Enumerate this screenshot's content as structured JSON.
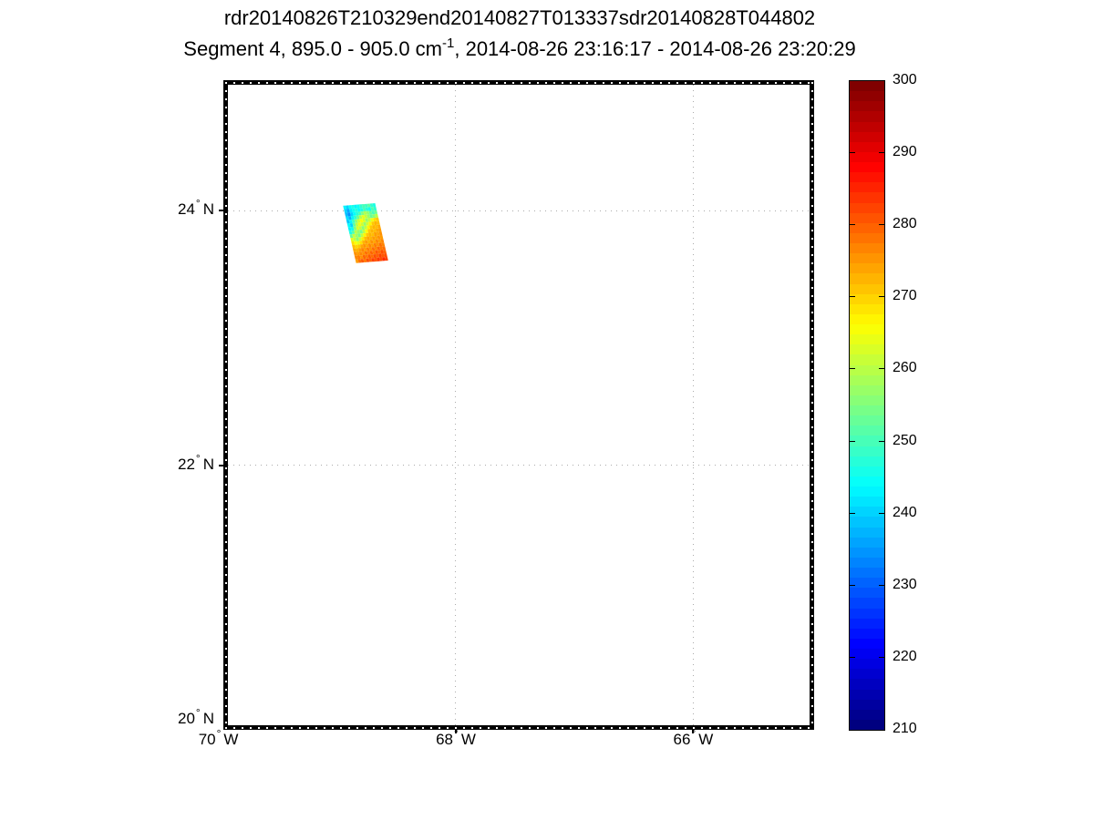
{
  "title": {
    "line1": "rdr20140826T210329end20140827T013337sdr20140828T044802",
    "line2_pre": "Segment 4, 895.0 - 905.0 cm",
    "line2_sup": "-1",
    "line2_post": ", 2014-08-26 23:16:17 - 2014-08-26 23:20:29"
  },
  "colors": {
    "background": "#ffffff",
    "frame": "#000000",
    "gridline": "#ababab"
  },
  "chart_data": {
    "type": "heatmap",
    "title_line1": "rdr20140826T210329end20140827T013337sdr20140828T044802",
    "title_line2": "Segment 4, 895.0 - 905.0 cm-1, 2014-08-26 23:16:17 - 2014-08-26 23:20:29",
    "colormap": "jet",
    "map": {
      "degree_symbol": "°",
      "lon_min": -69.92,
      "lon_max": -65.02,
      "lat_min": 19.96,
      "lat_max": 24.99,
      "grid": true,
      "lat_gridlines": [
        24,
        22
      ],
      "lon_gridlines": [
        -68,
        -66
      ],
      "lat_ticks": [
        {
          "value": 24,
          "label": "24",
          "dir": "N"
        },
        {
          "value": 22,
          "label": "22",
          "dir": "N"
        },
        {
          "value": 20,
          "label": "20",
          "dir": "N"
        }
      ],
      "lon_ticks": [
        {
          "value": -70,
          "label": "70",
          "dir": "W"
        },
        {
          "value": -68,
          "label": "68",
          "dir": "W"
        },
        {
          "value": -66,
          "label": "66",
          "dir": "W"
        }
      ]
    },
    "colorbar": {
      "min": 210,
      "max": 300,
      "ticks": [
        300,
        290,
        280,
        270,
        260,
        250,
        240,
        230,
        220,
        210
      ],
      "levels": 64,
      "position": "right"
    },
    "swath": {
      "corners_lonlat": {
        "tl": [
          -68.95,
          24.04
        ],
        "tr": [
          -68.68,
          24.06
        ],
        "br": [
          -68.56,
          23.63
        ],
        "bl": [
          -68.84,
          23.59
        ]
      },
      "cols": 12,
      "rows": 16,
      "values": [
        [
          243,
          240,
          244,
          246,
          243,
          245,
          248,
          250,
          249,
          252,
          248,
          246
        ],
        [
          240,
          236,
          242,
          245,
          247,
          244,
          246,
          250,
          247,
          245,
          251,
          248
        ],
        [
          238,
          234,
          240,
          244,
          247,
          250,
          255,
          259,
          257,
          253,
          250,
          253
        ],
        [
          241,
          237,
          243,
          248,
          253,
          260,
          264,
          261,
          257,
          253,
          256,
          260
        ],
        [
          239,
          243,
          249,
          256,
          262,
          266,
          263,
          257,
          261,
          265,
          269,
          271
        ],
        [
          244,
          240,
          252,
          260,
          265,
          262,
          257,
          262,
          267,
          271,
          273,
          272
        ],
        [
          243,
          245,
          255,
          263,
          261,
          256,
          261,
          267,
          271,
          273,
          272,
          274
        ],
        [
          246,
          251,
          260,
          257,
          254,
          260,
          266,
          271,
          273,
          272,
          274,
          275
        ],
        [
          253,
          261,
          258,
          254,
          261,
          267,
          271,
          273,
          272,
          275,
          274,
          276
        ],
        [
          264,
          261,
          256,
          262,
          268,
          272,
          274,
          273,
          275,
          274,
          276,
          275
        ],
        [
          269,
          266,
          264,
          269,
          273,
          275,
          273,
          276,
          274,
          277,
          275,
          277
        ],
        [
          272,
          270,
          271,
          274,
          276,
          274,
          277,
          275,
          278,
          276,
          279,
          277
        ],
        [
          274,
          273,
          275,
          277,
          275,
          278,
          276,
          279,
          277,
          280,
          278,
          279
        ],
        [
          276,
          275,
          277,
          276,
          279,
          277,
          280,
          278,
          281,
          279,
          282,
          280
        ],
        [
          277,
          278,
          276,
          280,
          278,
          281,
          279,
          282,
          280,
          283,
          281,
          282
        ],
        [
          275,
          279,
          281,
          278,
          282,
          280,
          283,
          281,
          284,
          282,
          285,
          283
        ]
      ]
    }
  }
}
